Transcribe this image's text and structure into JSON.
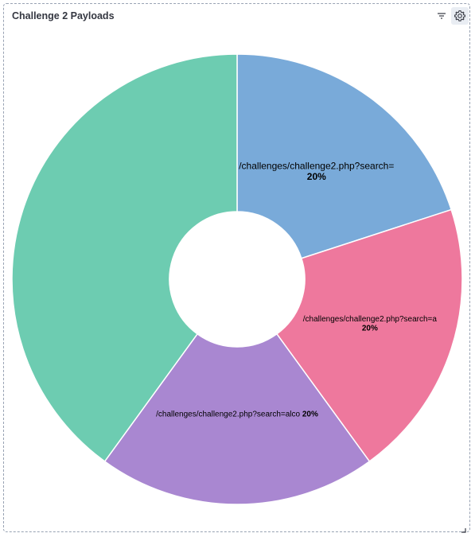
{
  "panel": {
    "title": "Challenge 2 Payloads",
    "filter_icon": "filter-icon",
    "settings_icon": "gear-icon",
    "resize_icon": "resize-handle-icon"
  },
  "chart_data": {
    "type": "pie",
    "donut": true,
    "start_angle_deg": 0,
    "slices": [
      {
        "name": "/challenges/challenge2.php?search=",
        "value": 20,
        "label": "20%",
        "color": "#79aad9"
      },
      {
        "name": "/challenges/challenge2.php?search=a",
        "value": 20,
        "label": "20%",
        "color": "#ee789d"
      },
      {
        "name": "/challenges/challenge2.php?search=alco",
        "value": 20,
        "label": "20%",
        "color": "#a987d1"
      },
      {
        "name": "",
        "value": 40,
        "label": "",
        "color": "#6dccb1"
      }
    ],
    "legend": "none"
  }
}
